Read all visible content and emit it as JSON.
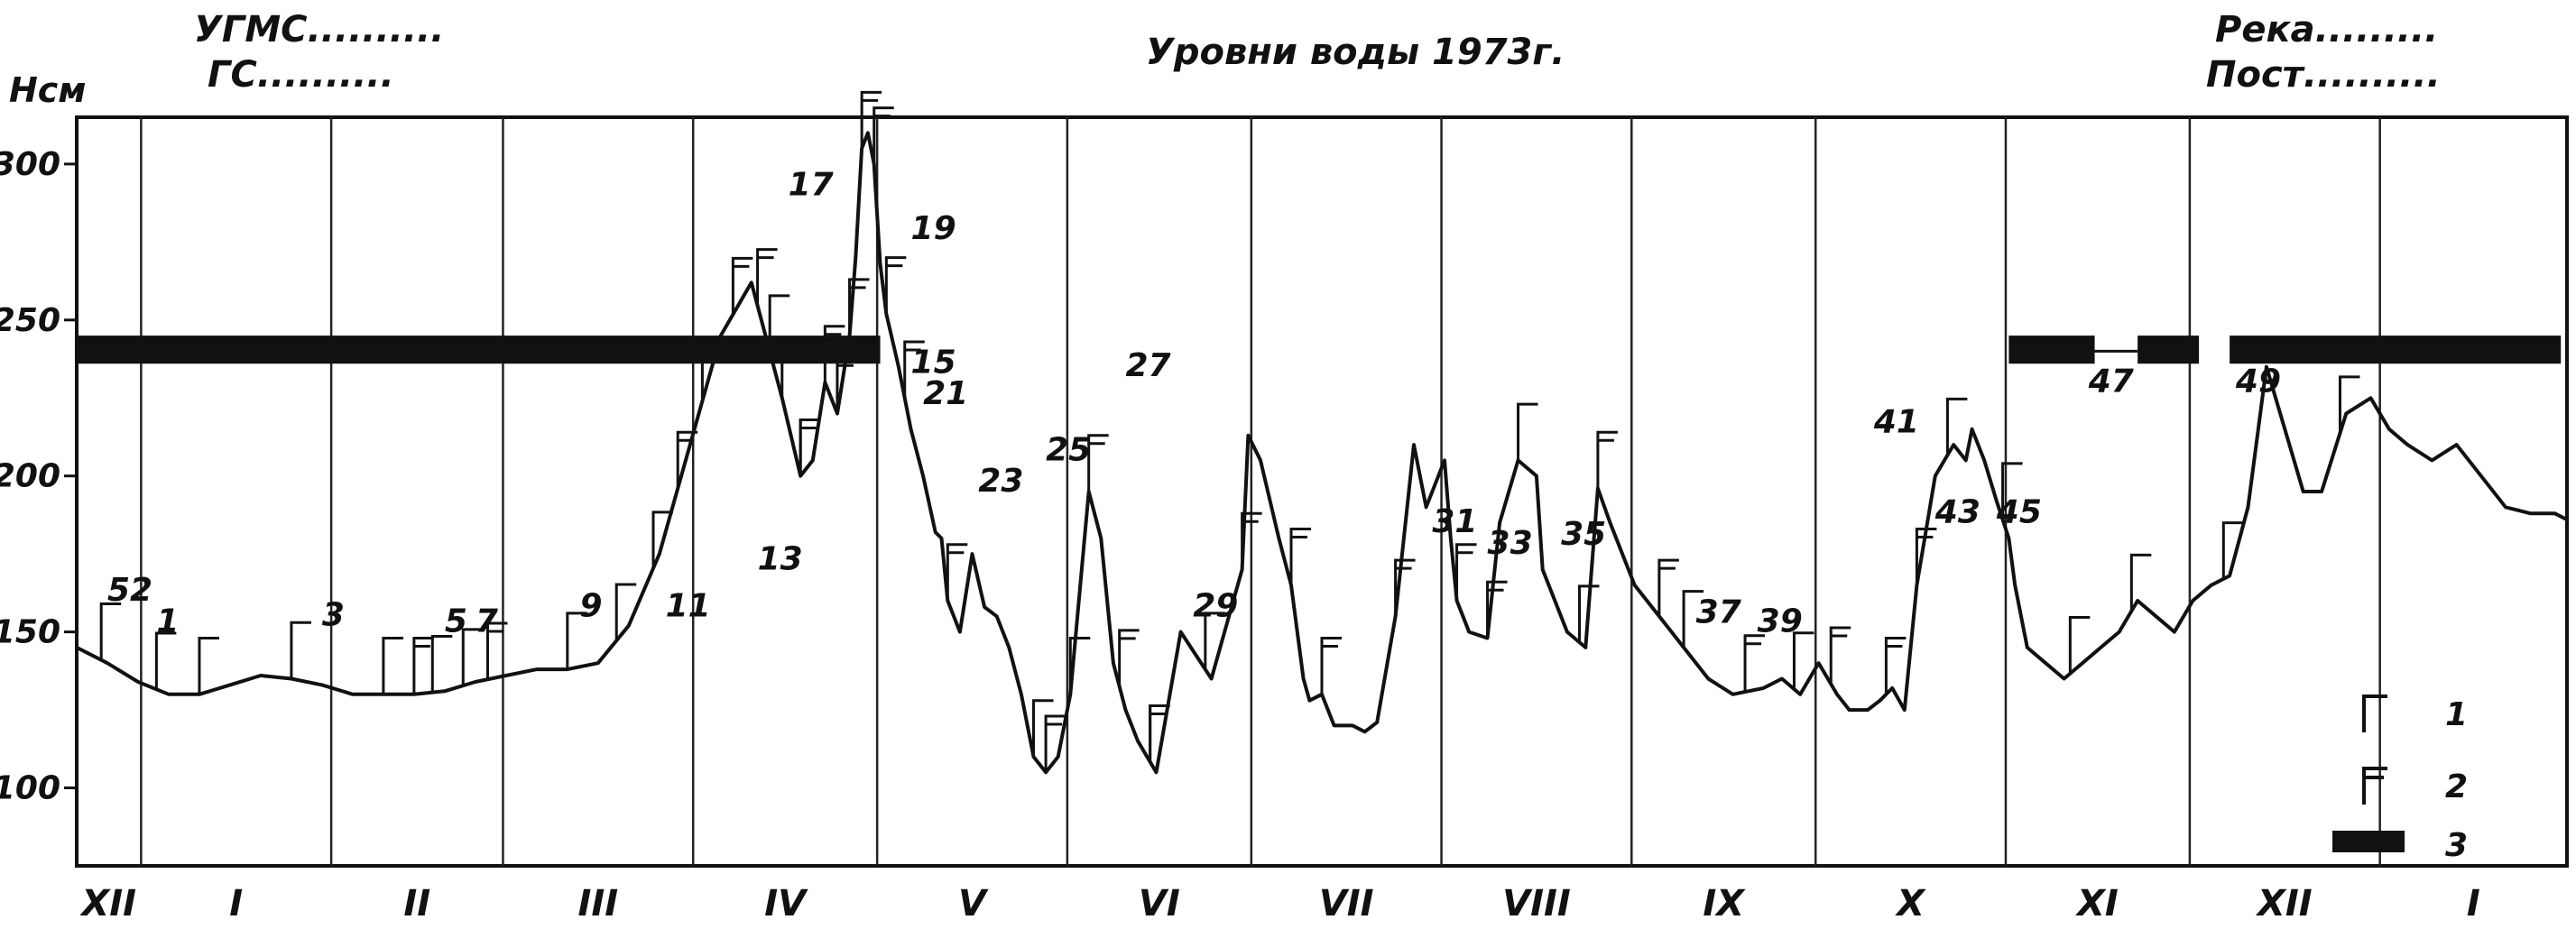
{
  "header": {
    "left_line1": "УГМС..........",
    "left_line2": "ГС..........",
    "title": "Уровни воды 1973г.",
    "right_line1": "Река.........",
    "right_line2": "Пост.........."
  },
  "chart_data": {
    "type": "line",
    "title": "Уровни воды 1973г.",
    "ylabel": "Нсм",
    "xlabel": "",
    "ylim": [
      75,
      315
    ],
    "grid": false,
    "yticks": [
      100,
      150,
      200,
      250,
      300
    ],
    "month_labels": [
      "XII",
      "I",
      "II",
      "III",
      "IV",
      "V",
      "VI",
      "VII",
      "VIII",
      "IX",
      "X",
      "XI",
      "XII",
      "I"
    ],
    "month_boundaries": [
      0.5,
      31.5,
      59.5,
      90.5,
      120.5,
      151.5,
      181.5,
      212.5,
      243.5,
      273.5,
      304.5,
      334.5,
      365.5
    ],
    "x_range": [
      -10,
      396
    ],
    "series": [
      {
        "name": "level",
        "x": [
          -10,
          -5,
          0,
          5,
          10,
          15,
          20,
          25,
          30,
          35,
          40,
          45,
          50,
          55,
          60,
          65,
          70,
          75,
          80,
          85,
          90,
          95,
          100,
          105,
          108,
          110,
          112,
          114,
          116,
          117,
          118,
          119,
          120,
          121,
          122,
          124,
          126,
          128,
          130,
          131,
          132,
          134,
          136,
          138,
          140,
          142,
          144,
          146,
          148,
          150,
          152,
          155,
          157,
          159,
          161,
          163,
          166,
          170,
          175,
          180,
          181,
          183,
          186,
          188,
          190,
          191,
          193,
          195,
          198,
          200,
          202,
          205,
          208,
          210,
          213,
          214,
          215,
          217,
          220,
          222,
          225,
          228,
          229,
          231,
          233,
          236,
          238,
          240,
          244,
          248,
          252,
          256,
          260,
          265,
          268,
          271,
          274,
          277,
          279,
          282,
          284,
          286,
          288,
          290,
          293,
          296,
          298,
          299,
          301,
          303,
          305,
          306,
          308,
          311,
          314,
          317,
          320,
          323,
          326,
          329,
          332,
          335,
          338,
          341,
          344,
          347,
          350,
          353,
          356,
          360,
          364,
          367,
          370,
          374,
          378,
          382,
          386,
          390,
          394,
          396
        ],
        "y": [
          145,
          140,
          134,
          130,
          130,
          133,
          136,
          135,
          133,
          130,
          130,
          130,
          131,
          134,
          136,
          138,
          138,
          140,
          152,
          175,
          210,
          245,
          262,
          225,
          200,
          205,
          230,
          220,
          245,
          270,
          305,
          310,
          300,
          268,
          252,
          235,
          215,
          200,
          182,
          180,
          160,
          150,
          175,
          158,
          155,
          145,
          130,
          110,
          105,
          110,
          130,
          195,
          180,
          140,
          125,
          115,
          105,
          150,
          135,
          170,
          213,
          205,
          180,
          165,
          135,
          128,
          130,
          120,
          120,
          118,
          121,
          155,
          210,
          190,
          205,
          180,
          160,
          150,
          148,
          185,
          205,
          200,
          170,
          160,
          150,
          145,
          196,
          185,
          165,
          155,
          145,
          135,
          130,
          132,
          135,
          130,
          140,
          130,
          125,
          125,
          128,
          132,
          125,
          165,
          200,
          210,
          205,
          215,
          205,
          192,
          180,
          165,
          145,
          140,
          135,
          140,
          145,
          150,
          160,
          155,
          150,
          160,
          165,
          168,
          190,
          235,
          215,
          195,
          195,
          220,
          225,
          215,
          210,
          205,
          210,
          200,
          190,
          188,
          188,
          186
        ],
        "color": "#111111"
      }
    ],
    "number_labels": [
      {
        "text": "52",
        "x": -5,
        "y": 160
      },
      {
        "text": "1",
        "x": 3,
        "y": 150
      },
      {
        "text": "3",
        "x": 30,
        "y": 152
      },
      {
        "text": "5",
        "x": 50,
        "y": 150
      },
      {
        "text": "7",
        "x": 55,
        "y": 150
      },
      {
        "text": "9",
        "x": 72,
        "y": 155
      },
      {
        "text": "11",
        "x": 86,
        "y": 155
      },
      {
        "text": "13",
        "x": 101,
        "y": 170
      },
      {
        "text": "15",
        "x": 126,
        "y": 233
      },
      {
        "text": "17",
        "x": 106,
        "y": 290
      },
      {
        "text": "19",
        "x": 126,
        "y": 276
      },
      {
        "text": "21",
        "x": 128,
        "y": 223
      },
      {
        "text": "23",
        "x": 137,
        "y": 195
      },
      {
        "text": "25",
        "x": 148,
        "y": 205
      },
      {
        "text": "27",
        "x": 161,
        "y": 232
      },
      {
        "text": "29",
        "x": 172,
        "y": 155
      },
      {
        "text": "31",
        "x": 211,
        "y": 182
      },
      {
        "text": "33",
        "x": 220,
        "y": 175
      },
      {
        "text": "35",
        "x": 232,
        "y": 178
      },
      {
        "text": "37",
        "x": 254,
        "y": 153
      },
      {
        "text": "39",
        "x": 264,
        "y": 150
      },
      {
        "text": "41",
        "x": 283,
        "y": 214
      },
      {
        "text": "43",
        "x": 293,
        "y": 185
      },
      {
        "text": "45",
        "x": 303,
        "y": 185
      },
      {
        "text": "47",
        "x": 318,
        "y": 227
      },
      {
        "text": "49",
        "x": 342,
        "y": 227
      }
    ],
    "marks_type1_days": [
      -6,
      3,
      10,
      25,
      40,
      48,
      53,
      70,
      78,
      84,
      92,
      103,
      108,
      146,
      152,
      165,
      174,
      225,
      235,
      252,
      270,
      295,
      304,
      315,
      325,
      340,
      359
    ],
    "marks_type2_days": [
      45,
      57,
      88,
      97,
      101,
      105,
      108,
      112,
      114,
      116,
      118,
      120,
      122,
      125,
      132,
      148,
      155,
      160,
      165,
      180,
      188,
      193,
      205,
      215,
      220,
      238,
      248,
      262,
      276,
      285,
      290
    ],
    "ice_bars": [
      [
        -10,
        121
      ],
      [
        305,
        319
      ],
      [
        326,
        336
      ],
      [
        341,
        395
      ]
    ],
    "legend": [
      {
        "key": "1",
        "type": "mark1"
      },
      {
        "key": "2",
        "type": "mark2"
      },
      {
        "key": "3",
        "type": "bar"
      }
    ]
  }
}
